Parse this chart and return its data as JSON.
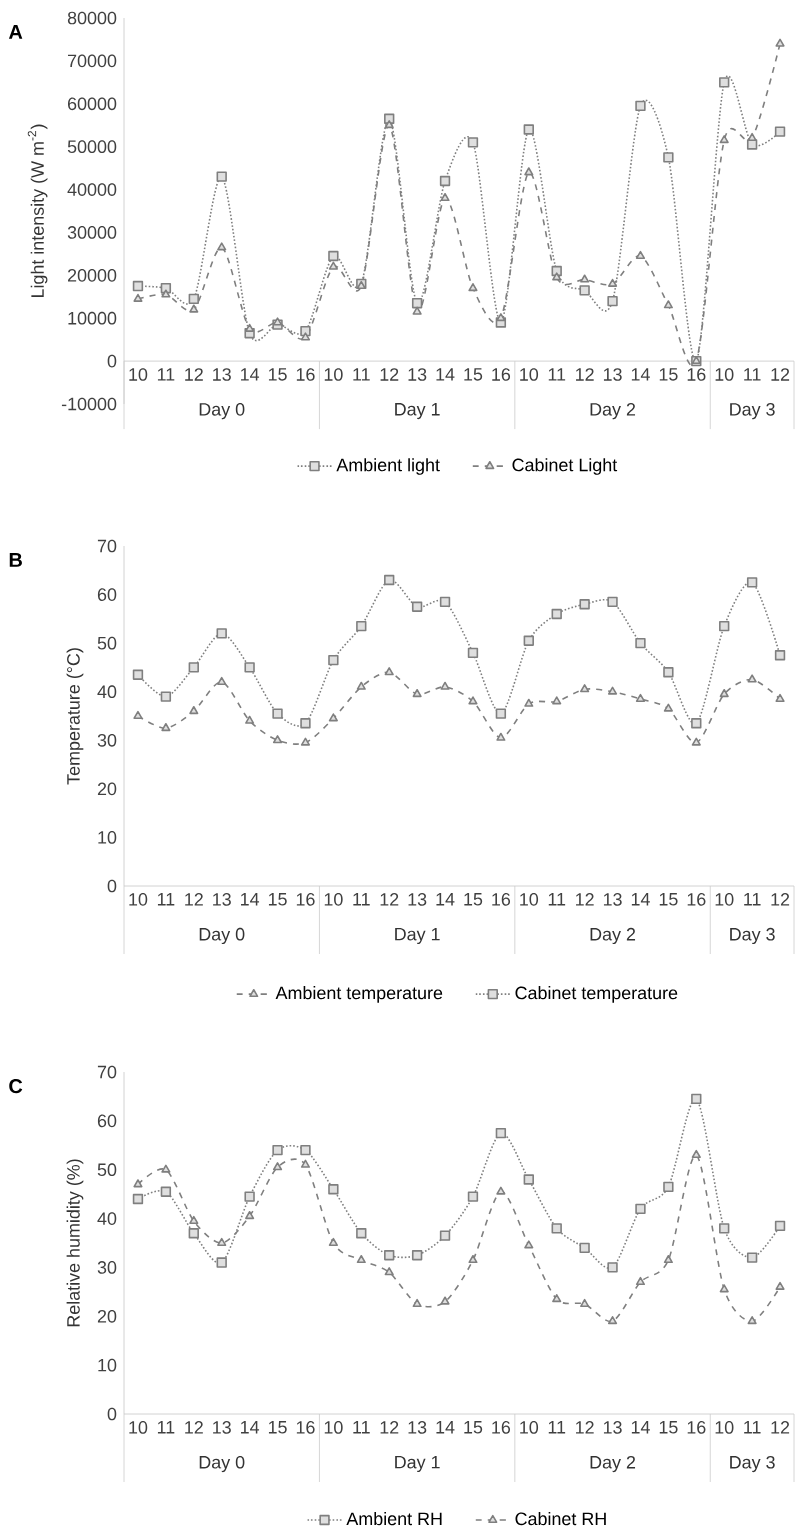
{
  "chart_data": [
    {
      "type": "line",
      "title": "A",
      "ylabel": "Light intensity (W m$^{-2}$)",
      "categories": [
        "10",
        "11",
        "12",
        "13",
        "14",
        "15",
        "16",
        "10",
        "11",
        "12",
        "13",
        "14",
        "15",
        "16",
        "10",
        "11",
        "12",
        "13",
        "14",
        "15",
        "16",
        "10",
        "11",
        "12"
      ],
      "annotations": [
        "Day 0",
        "Day 1",
        "Day 2",
        "Day 3"
      ],
      "ylim": [
        -10000,
        80000
      ],
      "yticks": [
        -10000,
        0,
        10000,
        20000,
        30000,
        40000,
        50000,
        60000,
        70000,
        80000
      ],
      "legend": "bottom",
      "series": [
        {
          "name": "Ambient light",
          "color": "#7f7f7f",
          "marker": "square",
          "line_style": "dotted",
          "values": [
            17500,
            17000,
            14500,
            43000,
            6500,
            8500,
            7000,
            24500,
            18000,
            56500,
            13500,
            42000,
            51000,
            9000,
            54000,
            21000,
            16500,
            14000,
            59500,
            47500,
            0,
            65000,
            50500,
            53500
          ]
        },
        {
          "name": "Cabinet Light",
          "color": "#7f7f7f",
          "marker": "triangle",
          "line_style": "dashed",
          "values": [
            14500,
            15500,
            12000,
            26500,
            7500,
            9000,
            5500,
            22000,
            17500,
            55000,
            11500,
            38000,
            17000,
            10000,
            44000,
            19500,
            19000,
            18000,
            24500,
            13000,
            0,
            51500,
            52000,
            74000
          ]
        }
      ]
    },
    {
      "type": "line",
      "title": "B",
      "ylabel": "Temperature (°C)",
      "categories": [
        "10",
        "11",
        "12",
        "13",
        "14",
        "15",
        "16",
        "10",
        "11",
        "12",
        "13",
        "14",
        "15",
        "16",
        "10",
        "11",
        "12",
        "13",
        "14",
        "15",
        "16",
        "10",
        "11",
        "12"
      ],
      "annotations": [
        "Day 0",
        "Day 1",
        "Day 2",
        "Day 3"
      ],
      "ylim": [
        0,
        70
      ],
      "yticks": [
        0,
        10,
        20,
        30,
        40,
        50,
        60,
        70
      ],
      "legend": "bottom",
      "series": [
        {
          "name": "Ambient temperature",
          "color": "#7f7f7f",
          "marker": "triangle",
          "line_style": "dashed",
          "values": [
            35,
            32.5,
            36,
            42,
            34,
            30,
            29.5,
            34.5,
            41,
            44,
            39.5,
            41,
            38,
            30.5,
            37.5,
            38,
            40.5,
            40,
            38.5,
            36.5,
            29.5,
            39.5,
            42.5,
            38.5
          ]
        },
        {
          "name": "Cabinet temperature",
          "color": "#7f7f7f",
          "marker": "square",
          "line_style": "dotted",
          "values": [
            43.5,
            39,
            45,
            52,
            45,
            35.5,
            33.5,
            46.5,
            53.5,
            63,
            57.5,
            58.5,
            48,
            35.5,
            50.5,
            56,
            58,
            58.5,
            50,
            44,
            33.5,
            53.5,
            62.5,
            47.5
          ]
        }
      ]
    },
    {
      "type": "line",
      "title": "C",
      "ylabel": "Relative humidity (%)",
      "categories": [
        "10",
        "11",
        "12",
        "13",
        "14",
        "15",
        "16",
        "10",
        "11",
        "12",
        "13",
        "14",
        "15",
        "16",
        "10",
        "11",
        "12",
        "13",
        "14",
        "15",
        "16",
        "10",
        "11",
        "12"
      ],
      "annotations": [
        "Day 0",
        "Day 1",
        "Day 2",
        "Day 3"
      ],
      "ylim": [
        0,
        70
      ],
      "yticks": [
        0,
        10,
        20,
        30,
        40,
        50,
        60,
        70
      ],
      "legend": "bottom",
      "series": [
        {
          "name": "Ambient RH",
          "color": "#7f7f7f",
          "marker": "square",
          "line_style": "dotted",
          "values": [
            44,
            45.5,
            37,
            31,
            44.5,
            54,
            54,
            46,
            37,
            32.5,
            32.5,
            36.5,
            44.5,
            57.5,
            48,
            38,
            34,
            30,
            42,
            46.5,
            64.5,
            38,
            32,
            38.5
          ]
        },
        {
          "name": "Cabinet RH",
          "color": "#7f7f7f",
          "marker": "triangle",
          "line_style": "dashed",
          "values": [
            47,
            50,
            39.5,
            35,
            40.5,
            50.5,
            51,
            35,
            31.5,
            29,
            22.5,
            23,
            31.5,
            45.5,
            34.5,
            23.5,
            22.5,
            19,
            27,
            31.5,
            53,
            25.5,
            19,
            26
          ]
        }
      ]
    }
  ]
}
